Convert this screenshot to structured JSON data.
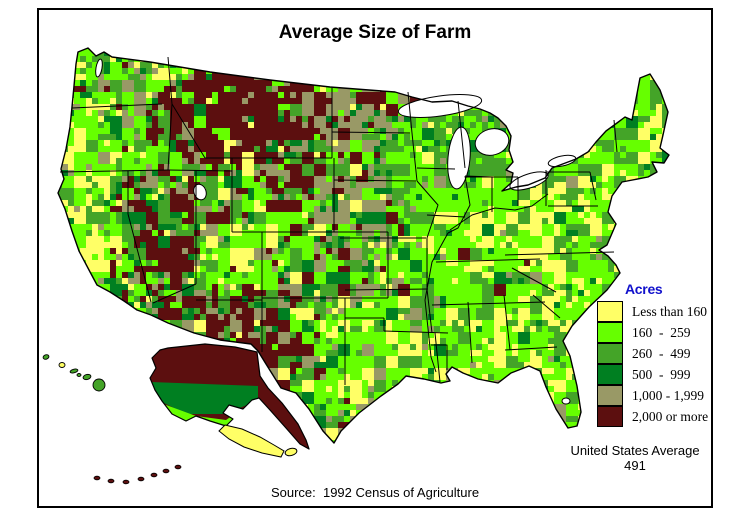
{
  "title": "Average Size of Farm",
  "legend": {
    "title": "Acres",
    "title_color": "#1111CC",
    "items": [
      {
        "label": "Less than 160",
        "color": "#FFFF66"
      },
      {
        "label": "160  -  259",
        "color": "#66FF00"
      },
      {
        "label": "260  -  499",
        "color": "#44A428"
      },
      {
        "label": "500  -  999",
        "color": "#007F21"
      },
      {
        "label": "1,000 - 1,999",
        "color": "#999966"
      },
      {
        "label": "2,000 or more",
        "color": "#5C0F0F"
      }
    ]
  },
  "annotations": {
    "us_average_label": "United States Average",
    "us_average_value": "491",
    "source": "Source:  1992 Census of Agriculture"
  },
  "chart_data": {
    "type": "choropleth",
    "title": "Average Size of Farm",
    "legend_title": "Acres",
    "unit": "acres per farm",
    "classes": [
      {
        "range": "Less than 160",
        "color": "#FFFF66"
      },
      {
        "range": "160 - 259",
        "color": "#66FF00"
      },
      {
        "range": "260 - 499",
        "color": "#44A428"
      },
      {
        "range": "500 - 999",
        "color": "#007F21"
      },
      {
        "range": "1,000 - 1,999",
        "color": "#999966"
      },
      {
        "range": "2,000 or more",
        "color": "#5C0F0F"
      }
    ],
    "united_states_average": 491,
    "source": "1992 Census of Agriculture",
    "geography": "United States counties, with Alaska and Hawaii insets"
  }
}
